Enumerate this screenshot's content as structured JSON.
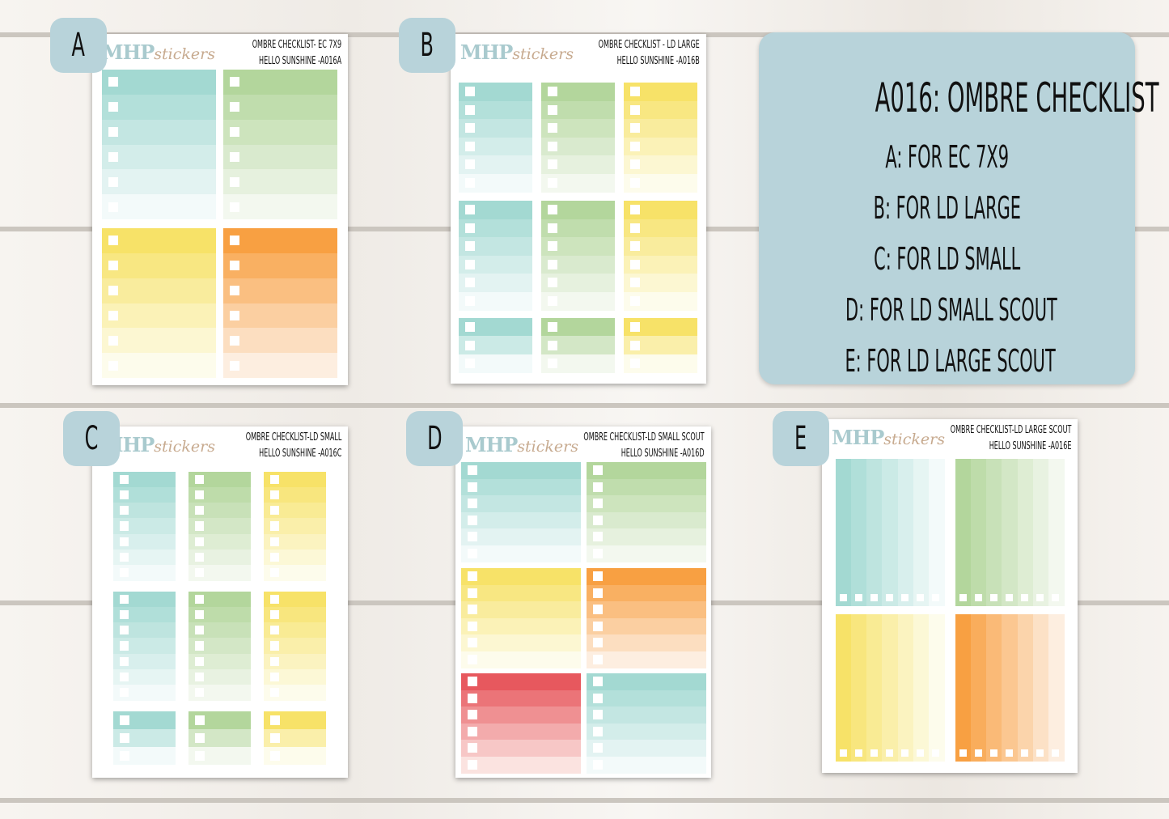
{
  "info_panel": {
    "title": "A016: OMBRE CHECKLIST",
    "items": [
      "A: FOR EC 7X9",
      "B: FOR LD LARGE",
      "C: FOR LD SMALL",
      "D: FOR LD SMALL SCOUT",
      "E: FOR LD LARGE SCOUT"
    ]
  },
  "sheets": [
    {
      "badge": "A",
      "brand": {
        "name": "MHP",
        "suffix": "stickers"
      },
      "title_lines": [
        "OMBRE CHECKLIST- EC 7X9",
        "HELLO SUNSHINE -A016A"
      ]
    },
    {
      "badge": "B",
      "brand": {
        "name": "MHP",
        "suffix": "stickers"
      },
      "title_lines": [
        "OMBRE CHECKLIST - LD LARGE",
        "HELLO SUNSHINE -A016B"
      ]
    },
    {
      "badge": "C",
      "brand": {
        "name": "MHP",
        "suffix": "stickers"
      },
      "title_lines": [
        "OMBRE CHECKLIST-LD SMALL",
        "HELLO SUNSHINE -A016C"
      ]
    },
    {
      "badge": "D",
      "brand": {
        "name": "MHP",
        "suffix": "stickers"
      },
      "title_lines": [
        "OMBRE CHECKLIST-LD SMALL SCOUT",
        "HELLO SUNSHINE -A016D"
      ]
    },
    {
      "badge": "E",
      "brand": {
        "name": "MHP",
        "suffix": "stickers"
      },
      "title_lines": [
        "OMBRE CHECKLIST-LD LARGE SCOUT",
        "HELLO SUNSHINE -A016E"
      ]
    }
  ]
}
